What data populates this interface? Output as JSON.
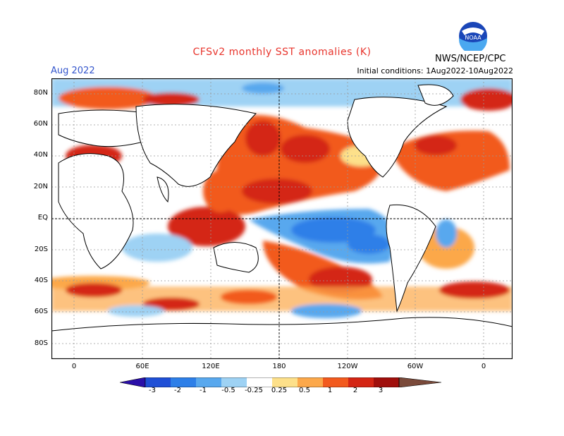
{
  "header": {
    "title": "CFSv2 monthly SST anomalies (K)",
    "period": "Aug 2022",
    "initial_conditions": "Initial conditions: 1Aug2022-10Aug2022",
    "agency": "NWS/NCEP/CPC",
    "logo_text": "NOAA"
  },
  "map": {
    "lat_labels": [
      "80N",
      "60N",
      "40N",
      "20N",
      "EQ",
      "20S",
      "40S",
      "60S",
      "80S"
    ],
    "lon_labels": [
      "0",
      "60E",
      "120E",
      "180",
      "120W",
      "60W",
      "0"
    ],
    "features": [
      {
        "name": "equatorial-pacific-cold-anomaly",
        "sign": "negative"
      },
      {
        "name": "north-pacific-warm-anomaly",
        "sign": "positive"
      },
      {
        "name": "southeast-pacific-warm-anomaly",
        "sign": "positive"
      },
      {
        "name": "north-atlantic-warm-anomaly",
        "sign": "positive"
      },
      {
        "name": "western-pacific-warm-pool",
        "sign": "positive"
      },
      {
        "name": "southern-ocean-mixed-anomalies",
        "sign": "mixed"
      }
    ]
  },
  "colorbar": {
    "labels": [
      "-3",
      "-2",
      "-1",
      "-0.5",
      "-0.25",
      "0.25",
      "0.5",
      "1",
      "2",
      "3"
    ],
    "colors": [
      "#2a0fa8",
      "#1f4fd6",
      "#2d7fe8",
      "#58a8ee",
      "#9ed2f4",
      "#ffffff",
      "#fde08a",
      "#fca84a",
      "#f25a1e",
      "#d42514",
      "#a00f0c",
      "#7a4a3a"
    ]
  }
}
